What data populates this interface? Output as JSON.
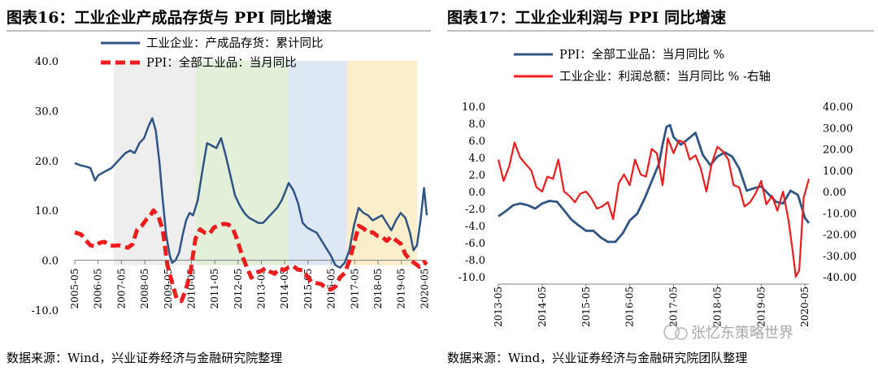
{
  "source_left": "数据来源：Wind，兴业证券经济与金融研究院整理",
  "source_right": "数据来源：Wind，兴业证券经济与金融研究院团队整理",
  "watermark": "张忆东策略世界",
  "chart_data": [
    {
      "type": "line",
      "title": "图表16：工业企业产成品存货与 PPI 同比增速",
      "ylim": [
        -10,
        40
      ],
      "yticks": [
        "40.0",
        "30.0",
        "20.0",
        "10.0",
        "0.0",
        "-10.0"
      ],
      "yticks_values": [
        40,
        30,
        20,
        10,
        0,
        -10
      ],
      "x_range": [
        2005.33,
        2020.42
      ],
      "xticks": [
        "2005-05",
        "2006-05",
        "2007-05",
        "2008-05",
        "2009-05",
        "2010-05",
        "2011-05",
        "2012-05",
        "2013-05",
        "2014-05",
        "2015-05",
        "2016-05",
        "2017-05",
        "2018-05",
        "2019-05",
        "2020-05"
      ],
      "xticks_values": [
        2005.33,
        2006.33,
        2007.33,
        2008.33,
        2009.33,
        2010.33,
        2011.33,
        2012.33,
        2013.33,
        2014.33,
        2015.33,
        2016.33,
        2017.33,
        2018.33,
        2019.33,
        2020.33
      ],
      "shaded_periods": [
        {
          "from": 2007.0,
          "to": 2010.5,
          "color": "#eeeeee"
        },
        {
          "from": 2010.5,
          "to": 2014.5,
          "color": "#e2efd9"
        },
        {
          "from": 2014.5,
          "to": 2017.0,
          "color": "#dde8f4"
        },
        {
          "from": 2017.0,
          "to": 2020.0,
          "color": "#fbeecb"
        }
      ],
      "series": [
        {
          "name": "工业企业：产成品存货：累计同比",
          "color": "#2f5486",
          "style": "solid",
          "x": [
            2005.33,
            2005.6,
            2005.8,
            2006.0,
            2006.2,
            2006.33,
            2006.5,
            2006.7,
            2006.9,
            2007.1,
            2007.3,
            2007.5,
            2007.7,
            2007.9,
            2008.1,
            2008.3,
            2008.5,
            2008.65,
            2008.8,
            2008.95,
            2009.1,
            2009.25,
            2009.4,
            2009.5,
            2009.65,
            2009.8,
            2009.95,
            2010.1,
            2010.25,
            2010.4,
            2010.6,
            2010.8,
            2011.0,
            2011.2,
            2011.4,
            2011.6,
            2011.8,
            2012.0,
            2012.2,
            2012.4,
            2012.6,
            2012.8,
            2013.0,
            2013.2,
            2013.4,
            2013.6,
            2013.8,
            2014.0,
            2014.2,
            2014.33,
            2014.5,
            2014.7,
            2014.9,
            2015.1,
            2015.3,
            2015.5,
            2015.7,
            2015.9,
            2016.1,
            2016.3,
            2016.5,
            2016.7,
            2016.9,
            2017.1,
            2017.3,
            2017.5,
            2017.7,
            2017.9,
            2018.1,
            2018.3,
            2018.5,
            2018.7,
            2018.9,
            2019.1,
            2019.3,
            2019.5,
            2019.7,
            2019.85,
            2020.0,
            2020.15,
            2020.3,
            2020.42
          ],
          "values": [
            19.5,
            19.0,
            18.8,
            18.5,
            16.0,
            17.0,
            17.5,
            18.0,
            18.5,
            19.5,
            20.5,
            21.5,
            22.0,
            21.5,
            23.5,
            24.5,
            27.0,
            28.5,
            26.0,
            20.0,
            12.0,
            5.0,
            1.0,
            -0.5,
            0.0,
            1.5,
            5.0,
            8.0,
            9.5,
            9.0,
            12.0,
            18.0,
            23.5,
            23.0,
            22.5,
            24.5,
            21.0,
            17.0,
            13.0,
            11.0,
            9.5,
            8.5,
            8.0,
            7.5,
            7.5,
            8.5,
            9.5,
            10.5,
            12.0,
            13.5,
            15.5,
            14.0,
            11.5,
            7.5,
            6.5,
            6.0,
            5.5,
            4.0,
            2.5,
            1.0,
            -1.0,
            -1.5,
            -0.5,
            2.0,
            7.0,
            10.5,
            9.5,
            9.0,
            8.0,
            8.5,
            9.0,
            7.5,
            6.0,
            8.0,
            9.5,
            8.5,
            5.5,
            2.0,
            3.0,
            8.0,
            14.5,
            9.0
          ]
        },
        {
          "name": "PPI：全部工业品：当月同比",
          "color": "#ee1c1c",
          "style": "dashed",
          "x": [
            2005.33,
            2005.6,
            2005.8,
            2006.0,
            2006.2,
            2006.4,
            2006.6,
            2006.8,
            2007.0,
            2007.2,
            2007.4,
            2007.6,
            2007.8,
            2008.0,
            2008.2,
            2008.4,
            2008.55,
            2008.7,
            2008.9,
            2009.1,
            2009.3,
            2009.5,
            2009.7,
            2009.9,
            2010.1,
            2010.3,
            2010.5,
            2010.7,
            2010.9,
            2011.1,
            2011.3,
            2011.5,
            2011.7,
            2011.9,
            2012.1,
            2012.3,
            2012.5,
            2012.7,
            2012.9,
            2013.1,
            2013.3,
            2013.5,
            2013.7,
            2013.9,
            2014.1,
            2014.3,
            2014.5,
            2014.7,
            2014.9,
            2015.1,
            2015.3,
            2015.5,
            2015.7,
            2015.9,
            2016.1,
            2016.3,
            2016.5,
            2016.7,
            2016.9,
            2017.1,
            2017.3,
            2017.5,
            2017.7,
            2017.9,
            2018.1,
            2018.3,
            2018.5,
            2018.7,
            2018.9,
            2019.1,
            2019.3,
            2019.5,
            2019.7,
            2019.9,
            2020.1,
            2020.3,
            2020.42
          ],
          "values": [
            5.6,
            5.2,
            4.0,
            3.0,
            2.8,
            3.5,
            3.7,
            3.0,
            2.9,
            3.0,
            2.8,
            2.5,
            3.2,
            6.1,
            6.9,
            8.2,
            8.8,
            10.0,
            9.0,
            6.1,
            -1.0,
            -4.5,
            -7.8,
            -8.2,
            -5.8,
            -2.1,
            4.3,
            6.2,
            5.5,
            5.3,
            6.6,
            6.9,
            7.3,
            7.2,
            6.4,
            4.0,
            1.0,
            -1.4,
            -3.5,
            -2.5,
            -2.2,
            -1.6,
            -2.3,
            -2.7,
            -1.6,
            -2.0,
            -1.4,
            -1.2,
            -1.9,
            -2.0,
            -3.3,
            -4.5,
            -4.6,
            -4.8,
            -5.6,
            -5.9,
            -5.3,
            -3.4,
            -2.6,
            -0.1,
            3.3,
            6.9,
            6.4,
            5.5,
            5.6,
            4.9,
            4.7,
            3.9,
            4.7,
            4.0,
            3.3,
            1.2,
            0.1,
            -0.6,
            -1.3,
            -0.4,
            -0.8
          ]
        }
      ]
    },
    {
      "type": "line",
      "title": "图表17：工业企业利润与 PPI 同比增速",
      "ylim_left": [
        -10,
        10
      ],
      "ylim_right": [
        -40,
        40
      ],
      "yticks_left": [
        "10.0",
        "8.0",
        "6.0",
        "4.0",
        "2.0",
        "0.0",
        "-2.0",
        "-4.0",
        "-6.0",
        "-8.0",
        "-10.0"
      ],
      "yticks_left_values": [
        10,
        8,
        6,
        4,
        2,
        0,
        -2,
        -4,
        -6,
        -8,
        -10
      ],
      "yticks_right": [
        "40.00",
        "30.00",
        "20.00",
        "10.00",
        "0.00",
        "-10.00",
        "-20.00",
        "-30.00",
        "-40.00"
      ],
      "yticks_right_values": [
        40,
        30,
        20,
        10,
        0,
        -10,
        -20,
        -30,
        -40
      ],
      "x_range": [
        2013.33,
        2020.42
      ],
      "xticks": [
        "2013-05",
        "2014-05",
        "2015-05",
        "2016-05",
        "2017-05",
        "2018-05",
        "2019-05",
        "2020-05"
      ],
      "xticks_values": [
        2013.33,
        2014.33,
        2015.33,
        2016.33,
        2017.33,
        2018.33,
        2019.33,
        2020.33
      ],
      "series": [
        {
          "name": "PPI：全部工业品：当月同比 %",
          "color": "#2f5486",
          "axis": "left",
          "x": [
            2013.33,
            2013.5,
            2013.67,
            2013.83,
            2014.0,
            2014.17,
            2014.33,
            2014.5,
            2014.67,
            2014.83,
            2015.0,
            2015.17,
            2015.33,
            2015.5,
            2015.67,
            2015.83,
            2016.0,
            2016.17,
            2016.33,
            2016.5,
            2016.67,
            2016.83,
            2017.0,
            2017.08,
            2017.17,
            2017.25,
            2017.33,
            2017.5,
            2017.67,
            2017.83,
            2018.0,
            2018.17,
            2018.33,
            2018.5,
            2018.67,
            2018.83,
            2019.0,
            2019.17,
            2019.33,
            2019.5,
            2019.67,
            2019.83,
            2020.0,
            2020.17,
            2020.33,
            2020.42
          ],
          "values": [
            -2.9,
            -2.3,
            -1.6,
            -1.4,
            -1.6,
            -2.0,
            -1.4,
            -1.1,
            -1.2,
            -2.2,
            -3.3,
            -4.0,
            -4.6,
            -4.6,
            -5.4,
            -5.9,
            -5.9,
            -4.9,
            -3.4,
            -2.6,
            -0.8,
            1.2,
            3.3,
            5.5,
            7.6,
            7.8,
            6.4,
            5.5,
            6.2,
            6.9,
            4.3,
            3.1,
            4.1,
            4.6,
            4.1,
            2.7,
            0.1,
            0.4,
            0.6,
            -0.3,
            -1.2,
            -1.4,
            0.1,
            -0.4,
            -3.1,
            -3.7
          ]
        },
        {
          "name": "工业企业：利润总额：当月同比 % -右轴",
          "color": "#ee1c1c",
          "axis": "right",
          "x": [
            2013.33,
            2013.45,
            2013.58,
            2013.7,
            2013.83,
            2013.95,
            2014.08,
            2014.2,
            2014.33,
            2014.45,
            2014.58,
            2014.7,
            2014.83,
            2014.95,
            2015.08,
            2015.2,
            2015.33,
            2015.45,
            2015.58,
            2015.7,
            2015.83,
            2015.95,
            2016.08,
            2016.2,
            2016.33,
            2016.45,
            2016.58,
            2016.7,
            2016.83,
            2016.95,
            2017.08,
            2017.2,
            2017.33,
            2017.45,
            2017.58,
            2017.7,
            2017.83,
            2017.95,
            2018.08,
            2018.2,
            2018.33,
            2018.45,
            2018.58,
            2018.7,
            2018.83,
            2018.95,
            2019.08,
            2019.2,
            2019.33,
            2019.45,
            2019.58,
            2019.7,
            2019.83,
            2019.95,
            2020.05,
            2020.12,
            2020.2,
            2020.3,
            2020.42
          ],
          "values": [
            15,
            5,
            12,
            23,
            16,
            13,
            10,
            2,
            0,
            7,
            6,
            15,
            0,
            -2,
            -5,
            -1,
            0,
            -3,
            -8,
            -7,
            -5,
            -13,
            4,
            8,
            3,
            15,
            8,
            7,
            20,
            18,
            3,
            25,
            18,
            24,
            23,
            15,
            17,
            11,
            0,
            13,
            21,
            19,
            15,
            3,
            2,
            -7,
            -5,
            -1,
            5,
            -6,
            -2,
            -9,
            0,
            -13,
            -28,
            -40,
            -37,
            -3,
            6
          ]
        }
      ]
    }
  ]
}
